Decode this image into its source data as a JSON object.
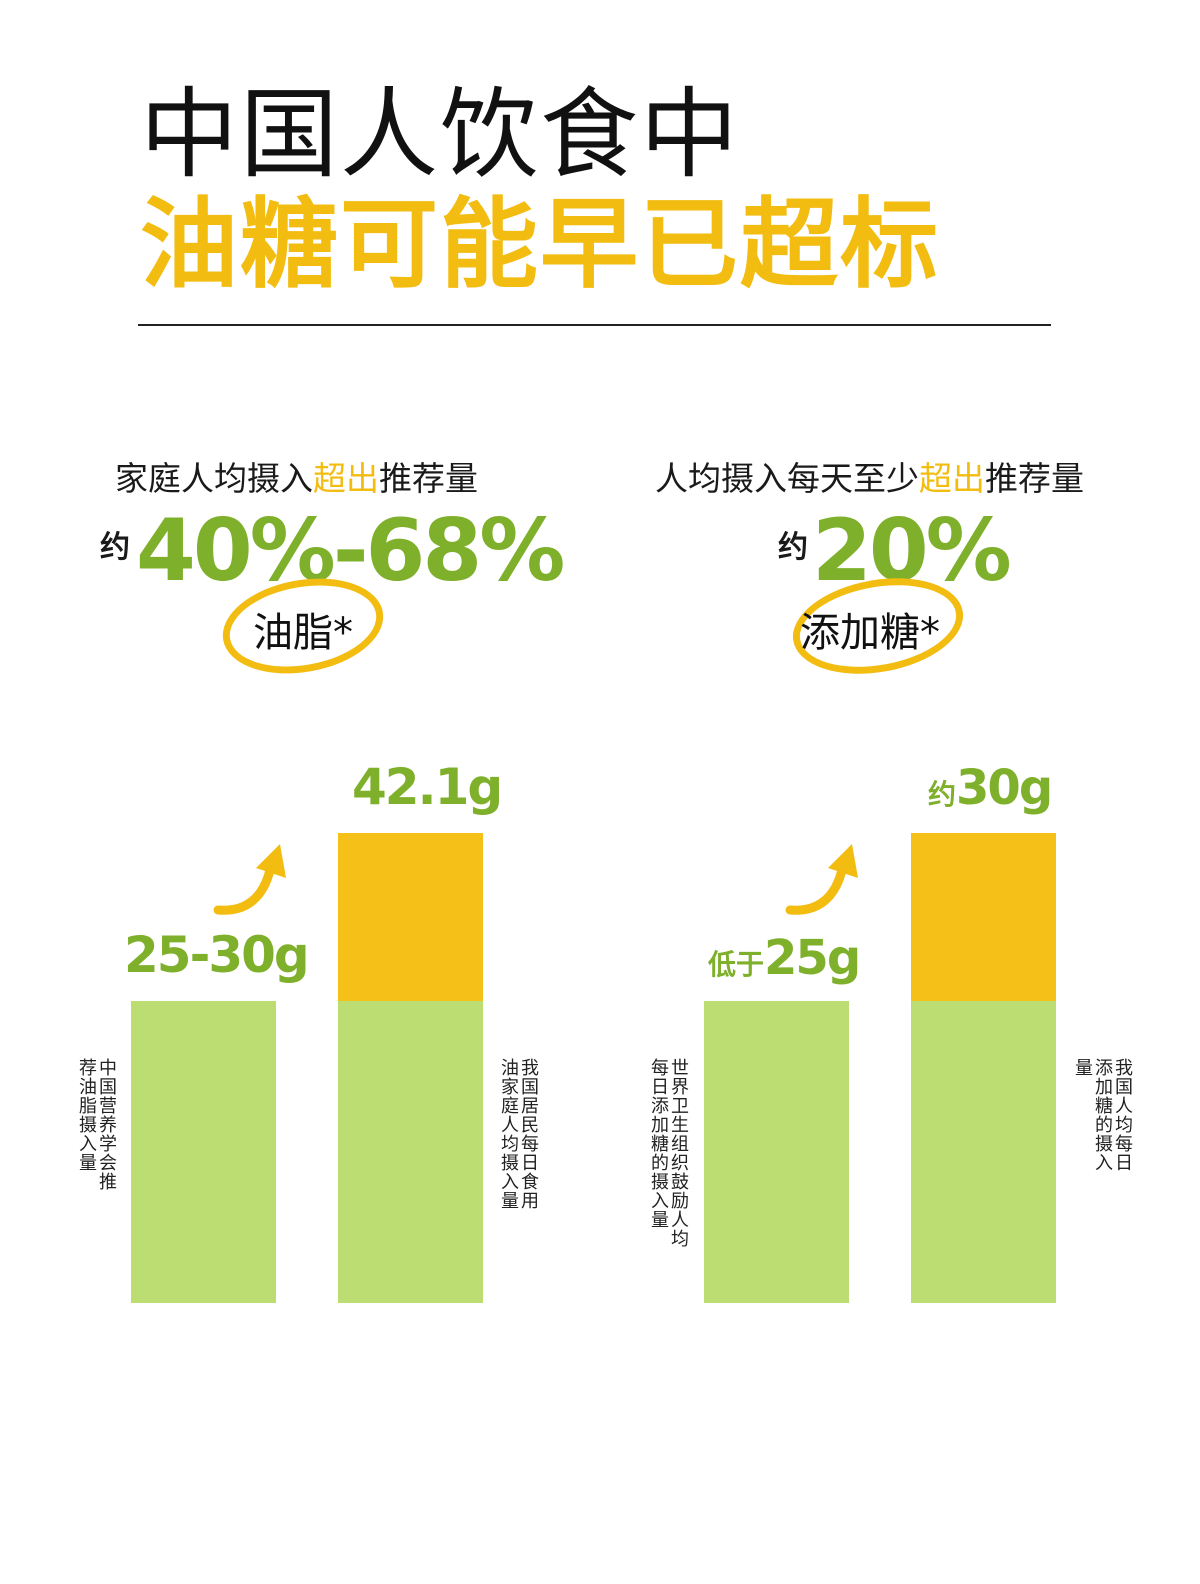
{
  "title": {
    "line1": "中国人饮食中",
    "line2": "油糖可能早已超标"
  },
  "colors": {
    "accent_yellow": "#f2bc10",
    "accent_green": "#7fb02b",
    "bar_green": "#bcdd72",
    "bar_yellow": "#f5c119"
  },
  "stats": [
    {
      "subtitle_pre": "家庭人均摄入",
      "subtitle_hl": "超出",
      "subtitle_post": "推荐量",
      "approx": "约",
      "value": "40%-68%",
      "nutrient": "油脂*"
    },
    {
      "subtitle_pre": "人均摄入每天至少",
      "subtitle_hl": "超出",
      "subtitle_post": "推荐量",
      "approx": "约",
      "value": "20%",
      "nutrient": "添加糖*"
    }
  ],
  "chart_data": [
    {
      "type": "bar",
      "categories": [
        "中国营养学会推荐油脂摄入量",
        "我国居民每日食用油家庭人均摄入量"
      ],
      "values": [
        30,
        42.1
      ],
      "value_labels": [
        "25-30g",
        "42.1g"
      ],
      "recommended": 30,
      "unit": "g"
    },
    {
      "type": "bar",
      "categories": [
        "世界卫生组织鼓励人均每日添加糖的摄入量",
        "我国人均每日添加糖的摄入量"
      ],
      "values": [
        25,
        30
      ],
      "value_labels": [
        {
          "prefix": "低于",
          "value": "25g"
        },
        {
          "prefix": "约",
          "value": "30g"
        }
      ],
      "recommended": 25,
      "unit": "g"
    }
  ]
}
